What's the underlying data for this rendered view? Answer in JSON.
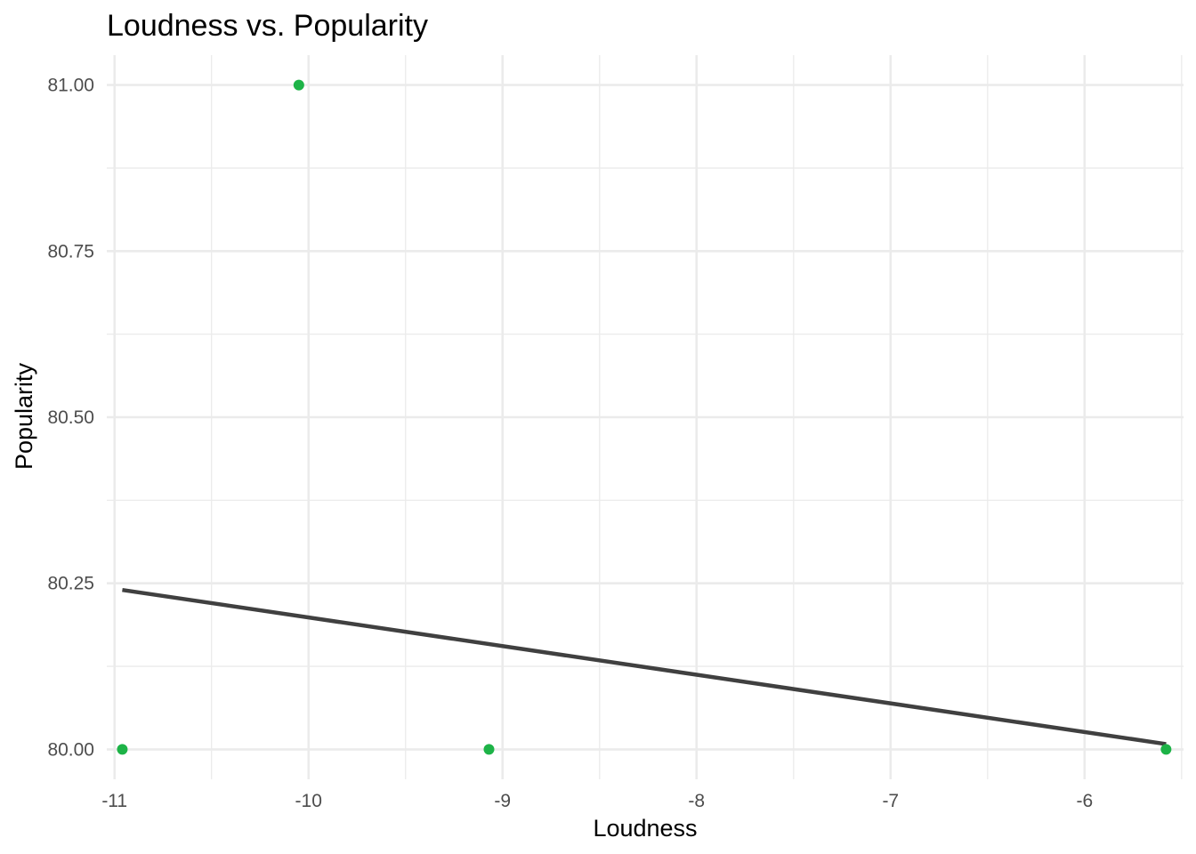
{
  "chart_data": {
    "type": "scatter",
    "title": "Loudness vs. Popularity",
    "xlabel": "Loudness",
    "ylabel": "Popularity",
    "xlim": [
      -11.04,
      -5.49
    ],
    "ylim": [
      79.955,
      81.045
    ],
    "x_ticks": [
      -11,
      -10,
      -9,
      -8,
      -7,
      -6
    ],
    "x_tick_labels": [
      "-11",
      "-10",
      "-9",
      "-8",
      "-7",
      "-6"
    ],
    "y_ticks": [
      80.0,
      80.25,
      80.5,
      80.75,
      81.0
    ],
    "y_tick_labels": [
      "80.00",
      "80.25",
      "80.50",
      "80.75",
      "81.00"
    ],
    "x_minor_ticks": [
      -10.5,
      -9.5,
      -8.5,
      -7.5,
      -6.5,
      -5.5
    ],
    "y_minor_ticks": [
      80.125,
      80.375,
      80.625,
      80.875
    ],
    "grid": true,
    "points": [
      {
        "x": -10.96,
        "y": 80.0
      },
      {
        "x": -10.05,
        "y": 81.0
      },
      {
        "x": -9.07,
        "y": 80.0
      },
      {
        "x": -5.58,
        "y": 80.0
      }
    ],
    "trend_line": {
      "x": [
        -10.96,
        -5.58
      ],
      "y": [
        80.24,
        80.008
      ]
    },
    "colors": {
      "points": "#1db347",
      "trend_line": "#404040",
      "grid": "#ebebeb",
      "background": "#ffffff"
    }
  }
}
